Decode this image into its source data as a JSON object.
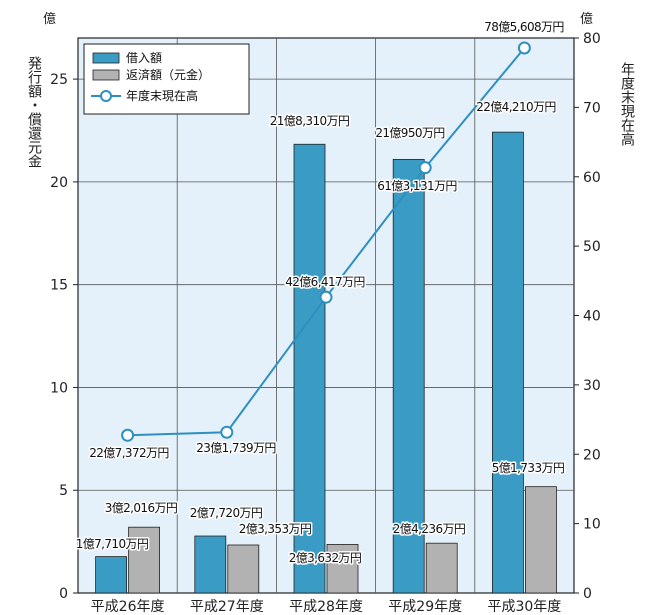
{
  "chart_data": {
    "type": "bar",
    "categories": [
      "平成26年度",
      "平成27年度",
      "平成28年度",
      "平成29年度",
      "平成30年度"
    ],
    "series": [
      {
        "name": "借入額",
        "axis": "left",
        "color": "#3a9cc4",
        "values": [
          1.771,
          2.772,
          21.831,
          21.095,
          22.421
        ],
        "labels": [
          "1億7,710万円",
          "2億7,720万円",
          "21億8,310万円",
          "21億950万円",
          "22億4,210万円"
        ]
      },
      {
        "name": "返済額（元金）",
        "axis": "left",
        "color": "#b2b2b2",
        "values": [
          3.2016,
          2.3353,
          2.3632,
          2.4236,
          5.1733
        ],
        "labels": [
          "3億2,016万円",
          "2億3,353万円",
          "2億3,632万円",
          "2億4,236万円",
          "5億1,733万円"
        ]
      },
      {
        "name": "年度末現在高",
        "axis": "right",
        "type": "line",
        "color": "#2e8fc0",
        "values": [
          22.7372,
          23.1739,
          42.6417,
          61.3131,
          78.5608
        ],
        "labels": [
          "22億7,372万円",
          "23億1,739万円",
          "42億6,417万円",
          "61億3,131万円",
          "78億5,608万円"
        ]
      }
    ],
    "left_axis": {
      "label": "発行額・償還元金",
      "unit": "億",
      "ticks": [
        "0",
        "5",
        "10",
        "15",
        "20",
        "25"
      ],
      "range": [
        0,
        27
      ]
    },
    "right_axis": {
      "label": "年度末現在高",
      "unit": "億",
      "ticks": [
        "0",
        "10",
        "20",
        "30",
        "40",
        "50",
        "60",
        "70",
        "80"
      ],
      "range": [
        0,
        80
      ]
    },
    "grid": true,
    "background": "#e4f1fa",
    "legend": {
      "placement": "top-left"
    }
  }
}
